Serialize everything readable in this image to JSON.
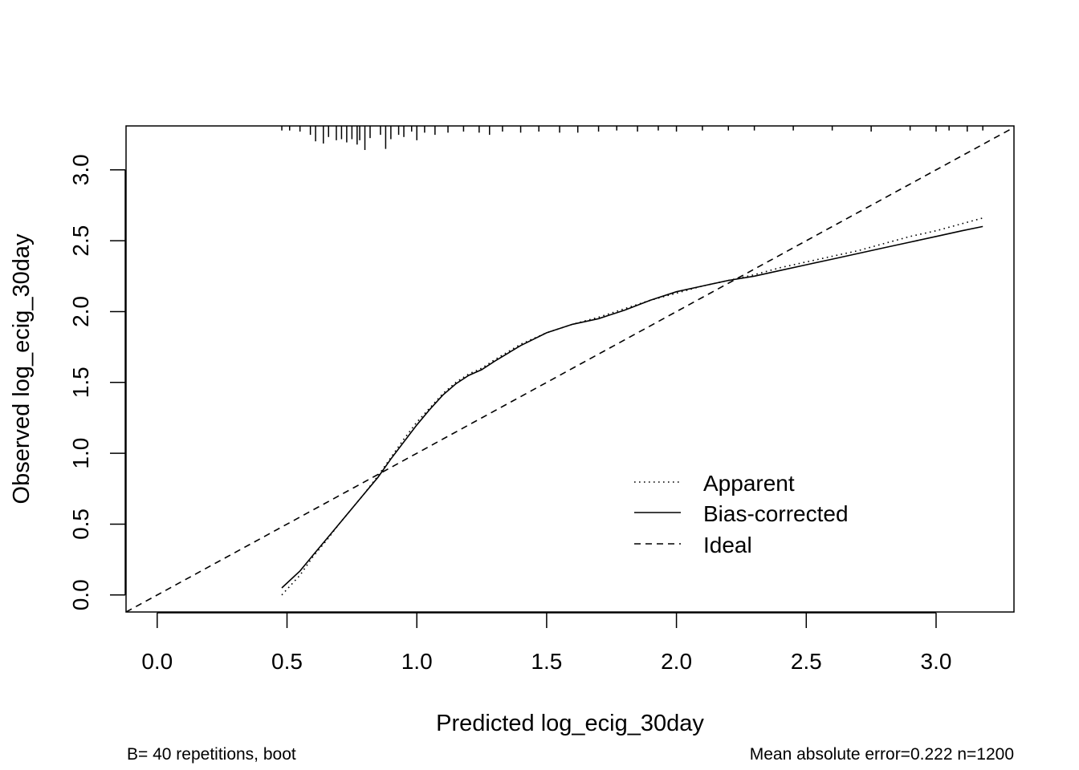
{
  "chart_data": {
    "type": "line",
    "xlabel": "Predicted log_ecig_30day",
    "ylabel": "Observed log_ecig_30day",
    "xlim": [
      -0.12,
      3.3
    ],
    "ylim": [
      -0.12,
      3.31
    ],
    "x_ticks": [
      0.0,
      0.5,
      1.0,
      1.5,
      2.0,
      2.5,
      3.0
    ],
    "x_tick_labels": [
      "0.0",
      "0.5",
      "1.0",
      "1.5",
      "2.0",
      "2.5",
      "3.0"
    ],
    "y_ticks": [
      0.0,
      0.5,
      1.0,
      1.5,
      2.0,
      2.5,
      3.0
    ],
    "y_tick_labels": [
      "0.0",
      "0.5",
      "1.0",
      "1.5",
      "2.0",
      "2.5",
      "3.0"
    ],
    "grid": false,
    "legend_position": "bottom-right",
    "series": [
      {
        "name": "Apparent",
        "style": "dotted",
        "x": [
          0.48,
          0.55,
          0.6,
          0.65,
          0.7,
          0.75,
          0.8,
          0.85,
          0.9,
          0.95,
          1.0,
          1.05,
          1.1,
          1.15,
          1.2,
          1.25,
          1.3,
          1.4,
          1.5,
          1.6,
          1.7,
          1.8,
          1.9,
          2.0,
          2.1,
          2.2,
          2.3,
          2.4,
          2.5,
          2.6,
          2.7,
          2.8,
          2.9,
          3.0,
          3.1,
          3.18
        ],
        "y": [
          0.0,
          0.14,
          0.27,
          0.38,
          0.5,
          0.61,
          0.72,
          0.84,
          0.97,
          1.1,
          1.22,
          1.32,
          1.42,
          1.5,
          1.56,
          1.6,
          1.66,
          1.77,
          1.85,
          1.91,
          1.96,
          2.02,
          2.08,
          2.13,
          2.18,
          2.22,
          2.26,
          2.31,
          2.35,
          2.39,
          2.43,
          2.48,
          2.53,
          2.57,
          2.62,
          2.66
        ]
      },
      {
        "name": "Bias-corrected",
        "style": "solid",
        "x": [
          0.48,
          0.55,
          0.6,
          0.65,
          0.7,
          0.75,
          0.8,
          0.85,
          0.9,
          0.95,
          1.0,
          1.05,
          1.1,
          1.15,
          1.2,
          1.25,
          1.3,
          1.4,
          1.5,
          1.6,
          1.7,
          1.8,
          1.9,
          2.0,
          2.1,
          2.2,
          2.3,
          2.4,
          2.5,
          2.6,
          2.7,
          2.8,
          2.9,
          3.0,
          3.1,
          3.18
        ],
        "y": [
          0.05,
          0.17,
          0.28,
          0.39,
          0.5,
          0.61,
          0.72,
          0.83,
          0.96,
          1.08,
          1.2,
          1.31,
          1.41,
          1.49,
          1.55,
          1.59,
          1.65,
          1.76,
          1.85,
          1.91,
          1.95,
          2.01,
          2.08,
          2.14,
          2.18,
          2.22,
          2.25,
          2.29,
          2.33,
          2.37,
          2.41,
          2.45,
          2.49,
          2.53,
          2.57,
          2.6
        ]
      },
      {
        "name": "Ideal",
        "style": "dashed",
        "x": [
          -0.12,
          3.3
        ],
        "y": [
          -0.12,
          3.3
        ]
      }
    ],
    "rug": {
      "x": [
        0.48,
        0.51,
        0.55,
        0.59,
        0.61,
        0.64,
        0.66,
        0.69,
        0.71,
        0.73,
        0.75,
        0.77,
        0.78,
        0.8,
        0.82,
        0.86,
        0.88,
        0.9,
        0.93,
        0.95,
        0.98,
        1.0,
        1.03,
        1.07,
        1.12,
        1.18,
        1.24,
        1.28,
        1.33,
        1.4,
        1.47,
        1.55,
        1.62,
        1.7,
        1.77,
        1.85,
        1.93,
        2.0,
        2.1,
        2.2,
        2.3,
        2.45,
        2.6,
        2.75,
        2.9,
        3.0,
        3.05,
        3.12,
        3.18
      ],
      "weight": [
        0.1,
        0.1,
        0.15,
        0.3,
        0.6,
        0.7,
        0.4,
        0.55,
        0.5,
        0.65,
        0.5,
        0.75,
        0.55,
        1.0,
        0.45,
        0.3,
        0.95,
        0.5,
        0.3,
        0.4,
        0.15,
        0.55,
        0.2,
        0.3,
        0.2,
        0.15,
        0.2,
        0.3,
        0.15,
        0.2,
        0.15,
        0.2,
        0.2,
        0.15,
        0.1,
        0.15,
        0.1,
        0.15,
        0.1,
        0.1,
        0.1,
        0.1,
        0.1,
        0.15,
        0.1,
        0.15,
        0.1,
        0.15,
        0.1
      ]
    },
    "subtitle_left": "B= 40 repetitions, boot",
    "subtitle_right": "Mean absolute error=0.222 n=1200"
  }
}
